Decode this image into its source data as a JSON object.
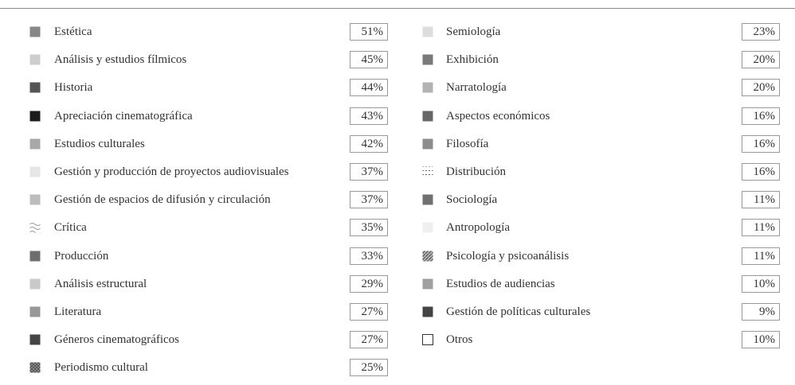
{
  "columns": [
    [
      {
        "label": "Estética",
        "value": "51%",
        "color": "#878787"
      },
      {
        "label": "Análisis y estudios fílmicos",
        "value": "45%",
        "color": "#cdcdcd"
      },
      {
        "label": "Historia",
        "value": "44%",
        "color": "#555555"
      },
      {
        "label": "Apreciación cinematográfica",
        "value": "43%",
        "color": "#1c1c1c"
      },
      {
        "label": "Estudios culturales",
        "value": "42%",
        "color": "#a8a8a8"
      },
      {
        "label": "Gestión y producción de proyectos audiovisuales",
        "value": "37%",
        "color": "#e6e6e6"
      },
      {
        "label": "Gestión de espacios de difusión y circulación",
        "value": "37%",
        "color": "#bdbdbd"
      },
      {
        "label": "Crítica",
        "value": "35%",
        "color": "url(#wave)"
      },
      {
        "label": "Producción",
        "value": "33%",
        "color": "#6e6e6e"
      },
      {
        "label": "Análisis estructural",
        "value": "29%",
        "color": "#c9c9c9"
      },
      {
        "label": "Literatura",
        "value": "27%",
        "color": "#979797"
      },
      {
        "label": "Géneros cinematográficos",
        "value": "27%",
        "color": "#444444"
      },
      {
        "label": "Periodismo cultural",
        "value": "25%",
        "color": "url(#check)"
      }
    ],
    [
      {
        "label": "Semiología",
        "value": "23%",
        "color": "#dddddd"
      },
      {
        "label": "Exhibición",
        "value": "20%",
        "color": "#7a7a7a"
      },
      {
        "label": "Narratología",
        "value": "20%",
        "color": "#b3b3b3"
      },
      {
        "label": "Aspectos económicos",
        "value": "16%",
        "color": "#676767"
      },
      {
        "label": "Filosofía",
        "value": "16%",
        "color": "#8c8c8c"
      },
      {
        "label": "Distribución",
        "value": "16%",
        "color": "url(#dots)"
      },
      {
        "label": "Sociología",
        "value": "11%",
        "color": "#707070"
      },
      {
        "label": "Antropología",
        "value": "11%",
        "color": "#efefef"
      },
      {
        "label": "Psicología y psicoanálisis",
        "value": "11%",
        "color": "url(#hatch)"
      },
      {
        "label": "Estudios de audiencias",
        "value": "10%",
        "color": "#a0a0a0"
      },
      {
        "label": "Gestión de políticas culturales",
        "value": "9%",
        "color": "#444444"
      },
      {
        "label": "Otros",
        "value": "10%",
        "color": "#ffffff"
      }
    ]
  ]
}
